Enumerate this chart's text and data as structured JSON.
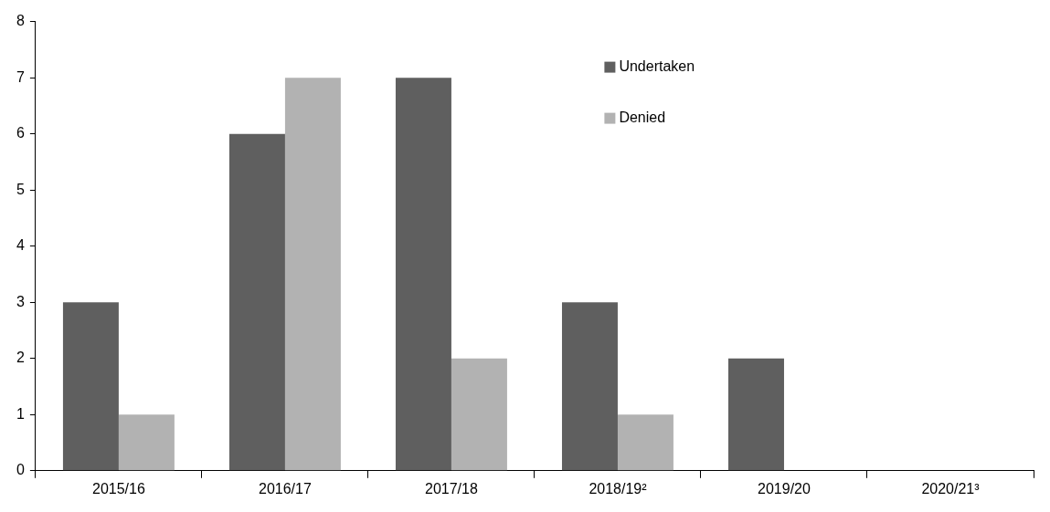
{
  "chart_data": {
    "type": "bar",
    "categories": [
      "2015/16",
      "2016/17",
      "2017/18",
      "2018/19²",
      "2019/20",
      "2020/21³"
    ],
    "series": [
      {
        "name": "Undertaken",
        "color": "#5f5f5f",
        "values": [
          3,
          6,
          7,
          3,
          2,
          0
        ]
      },
      {
        "name": "Denied",
        "color": "#b2b2b2",
        "values": [
          1,
          7,
          2,
          1,
          0,
          0
        ]
      }
    ],
    "ylim": [
      0,
      8
    ],
    "yticks": [
      0,
      1,
      2,
      3,
      4,
      5,
      6,
      7,
      8
    ],
    "grid": false,
    "legend": "top"
  }
}
